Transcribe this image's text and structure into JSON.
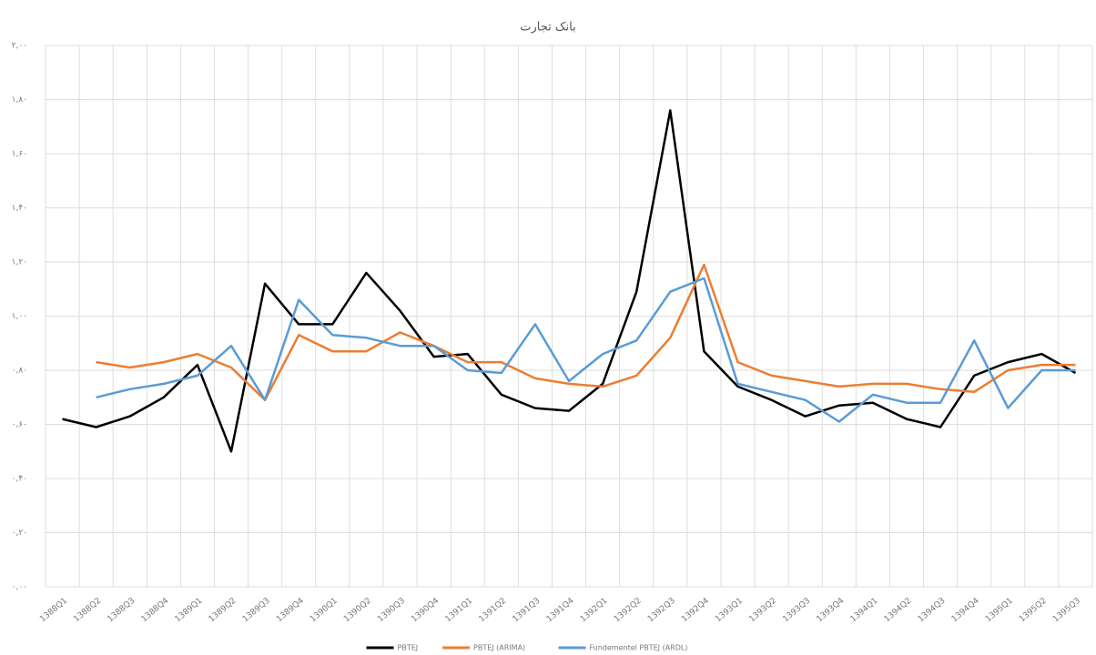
{
  "chart_data": {
    "type": "line",
    "title": "بانک تجارت",
    "categories": [
      "1388Q1",
      "1388Q2",
      "1388Q3",
      "1388Q4",
      "1389Q1",
      "1389Q2",
      "1389Q3",
      "1389Q4",
      "1390Q1",
      "1390Q2",
      "1390Q3",
      "1390Q4",
      "1391Q1",
      "1391Q2",
      "1391Q3",
      "1391Q4",
      "1392Q1",
      "1392Q2",
      "1392Q3",
      "1392Q4",
      "1393Q1",
      "1393Q2",
      "1393Q3",
      "1393Q4",
      "1394Q1",
      "1394Q2",
      "1394Q3",
      "1394Q4",
      "1395Q1",
      "1395Q2",
      "1395Q3"
    ],
    "series": [
      {
        "name": "PBTEJ",
        "color": "#000000",
        "values": [
          0.62,
          0.59,
          0.63,
          0.7,
          0.82,
          0.5,
          1.12,
          0.97,
          0.97,
          1.16,
          1.02,
          0.85,
          0.86,
          0.71,
          0.66,
          0.65,
          0.75,
          1.09,
          1.76,
          0.87,
          0.74,
          0.69,
          0.63,
          0.67,
          0.68,
          0.62,
          0.59,
          0.78,
          0.83,
          0.86,
          0.79
        ]
      },
      {
        "name": "PBTEJ (ARIMA)",
        "color": "#ed7d31",
        "values": [
          null,
          0.83,
          0.81,
          0.83,
          0.86,
          0.81,
          0.69,
          0.93,
          0.87,
          0.87,
          0.94,
          0.89,
          0.83,
          0.83,
          0.77,
          0.75,
          0.74,
          0.78,
          0.92,
          1.19,
          0.83,
          0.78,
          0.76,
          0.74,
          0.75,
          0.75,
          0.73,
          0.72,
          0.8,
          0.82,
          0.82
        ]
      },
      {
        "name": "Fundementel PBTEJ (ARDL)",
        "color": "#5b9bd5",
        "values": [
          null,
          0.7,
          0.73,
          0.75,
          0.78,
          0.89,
          0.69,
          1.06,
          0.93,
          0.92,
          0.89,
          0.89,
          0.8,
          0.79,
          0.97,
          0.76,
          0.86,
          0.91,
          1.09,
          1.14,
          0.75,
          0.72,
          0.69,
          0.61,
          0.71,
          0.68,
          0.68,
          0.91,
          0.66,
          0.8,
          0.8
        ]
      }
    ],
    "ylim": [
      0,
      2
    ],
    "yticks": [
      {
        "value": 0,
        "label": "۰,۰۰"
      },
      {
        "value": 0.2,
        "label": "۰,۲۰"
      },
      {
        "value": 0.4,
        "label": "۰,۴۰"
      },
      {
        "value": 0.6,
        "label": "۰,۶۰"
      },
      {
        "value": 0.8,
        "label": "۰,۸۰"
      },
      {
        "value": 1,
        "label": "۱,۰۰"
      },
      {
        "value": 1.2,
        "label": "۱,۲۰"
      },
      {
        "value": 1.4,
        "label": "۱,۴۰"
      },
      {
        "value": 1.6,
        "label": "۱,۶۰"
      },
      {
        "value": 1.8,
        "label": "۱,۸۰"
      },
      {
        "value": 2,
        "label": "۲,۰۰"
      }
    ],
    "grid": true,
    "legend": "bottom"
  }
}
